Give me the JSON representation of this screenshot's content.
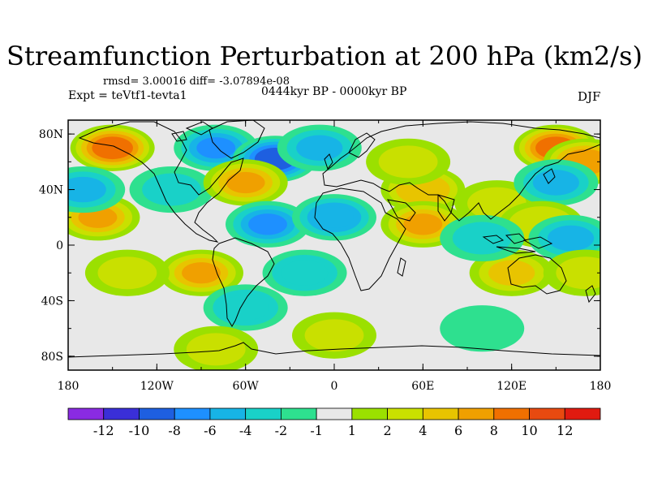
{
  "plot": {
    "title": "Streamfunction Perturbation at 200 hPa (km2/s)",
    "stats": "rmsd= 3.00016 diff= -3.07894e-08",
    "experiment": "Expt = teVtf1-tevta1",
    "period": "0444kyr BP - 0000kyr BP",
    "season": "DJF"
  },
  "axes": {
    "lat_ticks": [
      "80N",
      "40N",
      "0",
      "40S",
      "80S"
    ],
    "lon_ticks": [
      "180",
      "120W",
      "60W",
      "0",
      "60E",
      "120E",
      "180"
    ]
  },
  "colorbar": {
    "labels": [
      "-12",
      "-10",
      "-8",
      "-6",
      "-4",
      "-2",
      "-1",
      "1",
      "2",
      "4",
      "6",
      "8",
      "10",
      "12"
    ],
    "colors": [
      "#8a2be2",
      "#3a2fd8",
      "#1e5fe0",
      "#1e90ff",
      "#17b4e6",
      "#19d1c8",
      "#2ee08f",
      "#e8e8e8",
      "#9be000",
      "#c9e000",
      "#e8c400",
      "#f0a000",
      "#f07000",
      "#e84a10",
      "#e01a10"
    ]
  },
  "field_blobs": [
    {
      "lon": -150,
      "lat": 70,
      "value": 9
    },
    {
      "lon": -160,
      "lat": 20,
      "value": 6
    },
    {
      "lon": -170,
      "lat": 40,
      "value": -4
    },
    {
      "lon": -110,
      "lat": 40,
      "value": -2
    },
    {
      "lon": -80,
      "lat": 70,
      "value": -6
    },
    {
      "lon": -40,
      "lat": 62,
      "value": -9
    },
    {
      "lon": -10,
      "lat": 70,
      "value": -4
    },
    {
      "lon": -60,
      "lat": 45,
      "value": 6
    },
    {
      "lon": -45,
      "lat": 15,
      "value": -6
    },
    {
      "lon": 0,
      "lat": 20,
      "value": -5
    },
    {
      "lon": -90,
      "lat": -20,
      "value": 6
    },
    {
      "lon": -140,
      "lat": -20,
      "value": 2
    },
    {
      "lon": -20,
      "lat": -20,
      "value": -3
    },
    {
      "lon": -60,
      "lat": -45,
      "value": -3
    },
    {
      "lon": 0,
      "lat": -65,
      "value": 2
    },
    {
      "lon": -80,
      "lat": -75,
      "value": 2
    },
    {
      "lon": 60,
      "lat": 40,
      "value": 5
    },
    {
      "lon": 50,
      "lat": 60,
      "value": 2
    },
    {
      "lon": 60,
      "lat": 15,
      "value": 6
    },
    {
      "lon": 110,
      "lat": 30,
      "value": 2
    },
    {
      "lon": 150,
      "lat": 70,
      "value": 9
    },
    {
      "lon": 170,
      "lat": 60,
      "value": 7
    },
    {
      "lon": 150,
      "lat": 45,
      "value": -4
    },
    {
      "lon": 140,
      "lat": 15,
      "value": 3
    },
    {
      "lon": 160,
      "lat": 5,
      "value": -4
    },
    {
      "lon": 120,
      "lat": -20,
      "value": 4
    },
    {
      "lon": 100,
      "lat": 5,
      "value": -2
    },
    {
      "lon": 170,
      "lat": -20,
      "value": 2
    },
    {
      "lon": 100,
      "lat": -60,
      "value": -1
    }
  ]
}
